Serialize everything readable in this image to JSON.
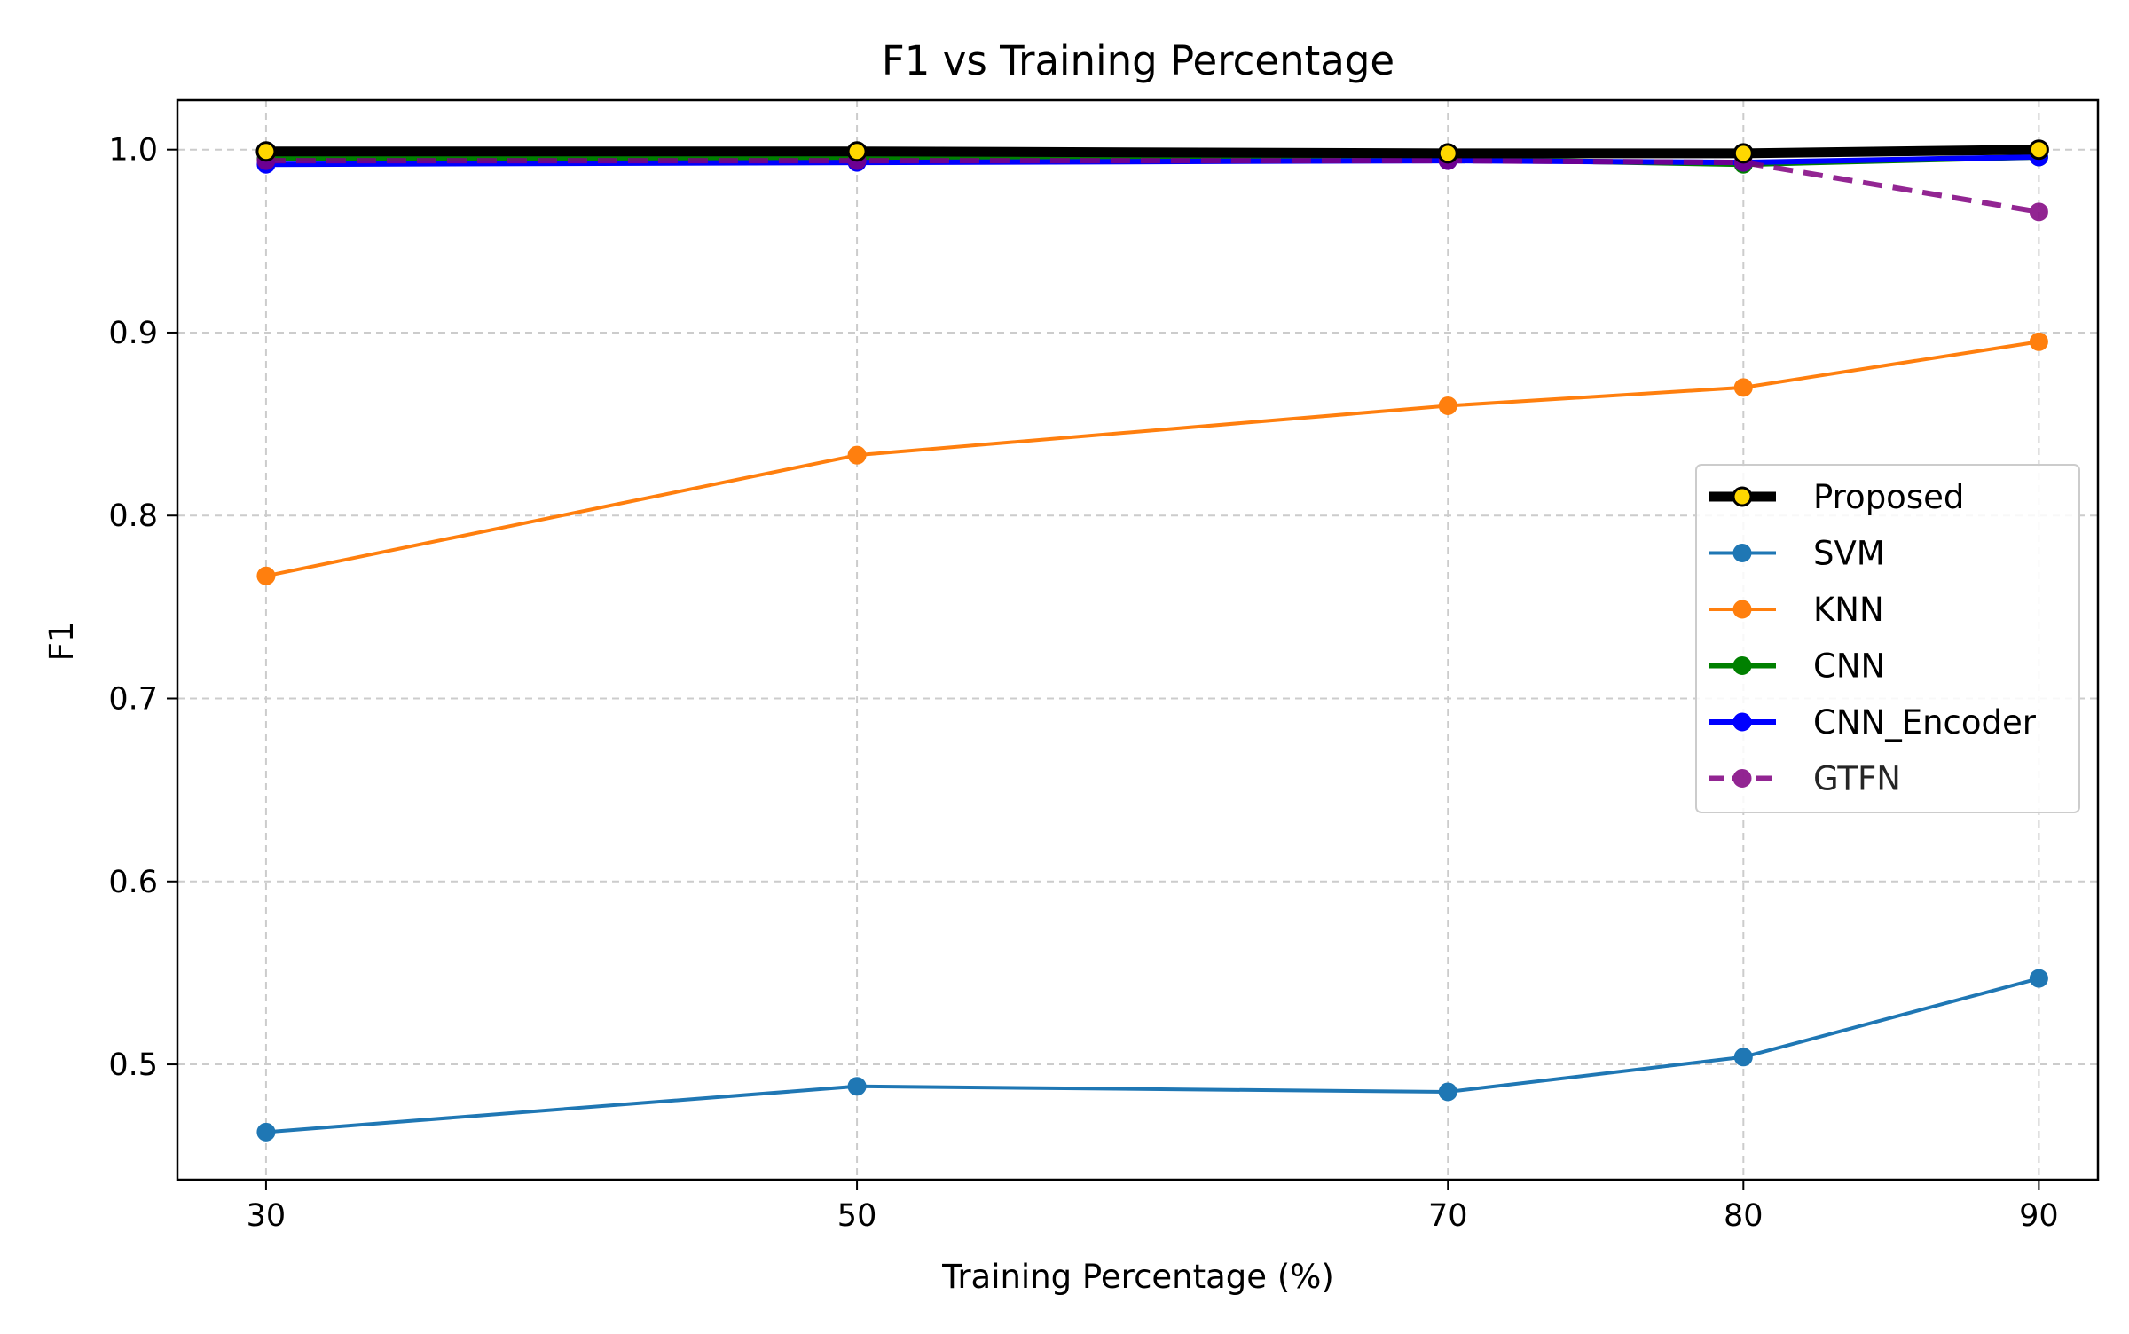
{
  "chart_data": {
    "type": "line",
    "title": "F1 vs Training Percentage",
    "xlabel": "Training Percentage (%)",
    "ylabel": "F1",
    "x": [
      30,
      50,
      70,
      80,
      90
    ],
    "x_tick_labels": [
      "30",
      "50",
      "70",
      "80",
      "90"
    ],
    "xlim": [
      27,
      92
    ],
    "ylim": [
      0.437,
      1.027
    ],
    "y_ticks": [
      0.5,
      0.6,
      0.7,
      0.8,
      0.9,
      1.0
    ],
    "y_tick_labels": [
      "0.5",
      "0.6",
      "0.7",
      "0.8",
      "0.9",
      "1.0"
    ],
    "grid": true,
    "legend_position": "center-right",
    "series": [
      {
        "name": "SVM",
        "values": [
          0.463,
          0.488,
          0.485,
          0.504,
          0.547
        ],
        "color": "#1f77b4",
        "marker_fill": "#1f77b4",
        "line_style": "solid",
        "line_width": "normal"
      },
      {
        "name": "KNN",
        "values": [
          0.767,
          0.833,
          0.86,
          0.87,
          0.895
        ],
        "color": "#ff7f0e",
        "marker_fill": "#ff7f0e",
        "line_style": "solid",
        "line_width": "normal"
      },
      {
        "name": "CNN",
        "values": [
          0.995,
          0.995,
          0.995,
          0.992,
          0.996
        ],
        "color": "#008000",
        "marker_fill": "#008000",
        "line_style": "solid",
        "line_width": "medium"
      },
      {
        "name": "CNN_Encoder",
        "values": [
          0.992,
          0.993,
          0.994,
          0.993,
          0.996
        ],
        "color": "#0000ff",
        "marker_fill": "#0000ff",
        "line_style": "solid",
        "line_width": "medium"
      },
      {
        "name": "GTFN",
        "values": [
          0.994,
          0.994,
          0.994,
          0.993,
          0.966
        ],
        "color": "#800080",
        "marker_fill": "#800080",
        "line_style": "dashed",
        "line_width": "medium",
        "opacity": 0.85
      },
      {
        "name": "Proposed",
        "values": [
          0.999,
          0.999,
          0.998,
          0.998,
          1.0
        ],
        "color": "#000000",
        "marker_fill": "#ffd700",
        "marker_edge": "#000000",
        "line_style": "solid",
        "line_width": "thick"
      }
    ],
    "legend_order": [
      "Proposed",
      "SVM",
      "KNN",
      "CNN",
      "CNN_Encoder",
      "GTFN"
    ]
  }
}
